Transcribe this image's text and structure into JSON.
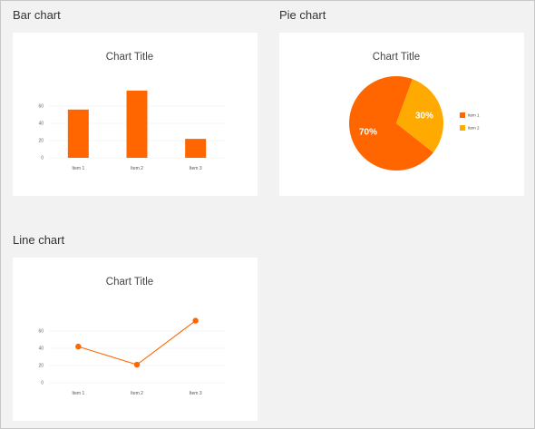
{
  "colors": {
    "primary": "#ff6600",
    "secondary": "#ffaa00",
    "grid": "#ececec",
    "background": "#f2f2f2",
    "card": "#ffffff"
  },
  "sections": {
    "bar": {
      "label": "Bar chart"
    },
    "pie": {
      "label": "Pie chart"
    },
    "line": {
      "label": "Line chart"
    }
  },
  "chart_data": [
    {
      "type": "bar",
      "title": "Chart Title",
      "categories": [
        "Item 1",
        "Item 2",
        "Item 3"
      ],
      "values": [
        56,
        78,
        22
      ],
      "yticks": [
        0,
        20,
        40,
        60
      ],
      "ylim": [
        0,
        80
      ],
      "grid": true
    },
    {
      "type": "pie",
      "title": "Chart Title",
      "categories": [
        "Item 1",
        "Item 2"
      ],
      "values": [
        70,
        30
      ],
      "labels": [
        "70%",
        "30%"
      ],
      "legend": "right"
    },
    {
      "type": "line",
      "title": "Chart Title",
      "categories": [
        "Item 1",
        "Item 2",
        "Item 3"
      ],
      "values": [
        42,
        21,
        72
      ],
      "yticks": [
        0,
        20,
        40,
        60
      ],
      "ylim": [
        0,
        80
      ],
      "grid": true
    }
  ]
}
